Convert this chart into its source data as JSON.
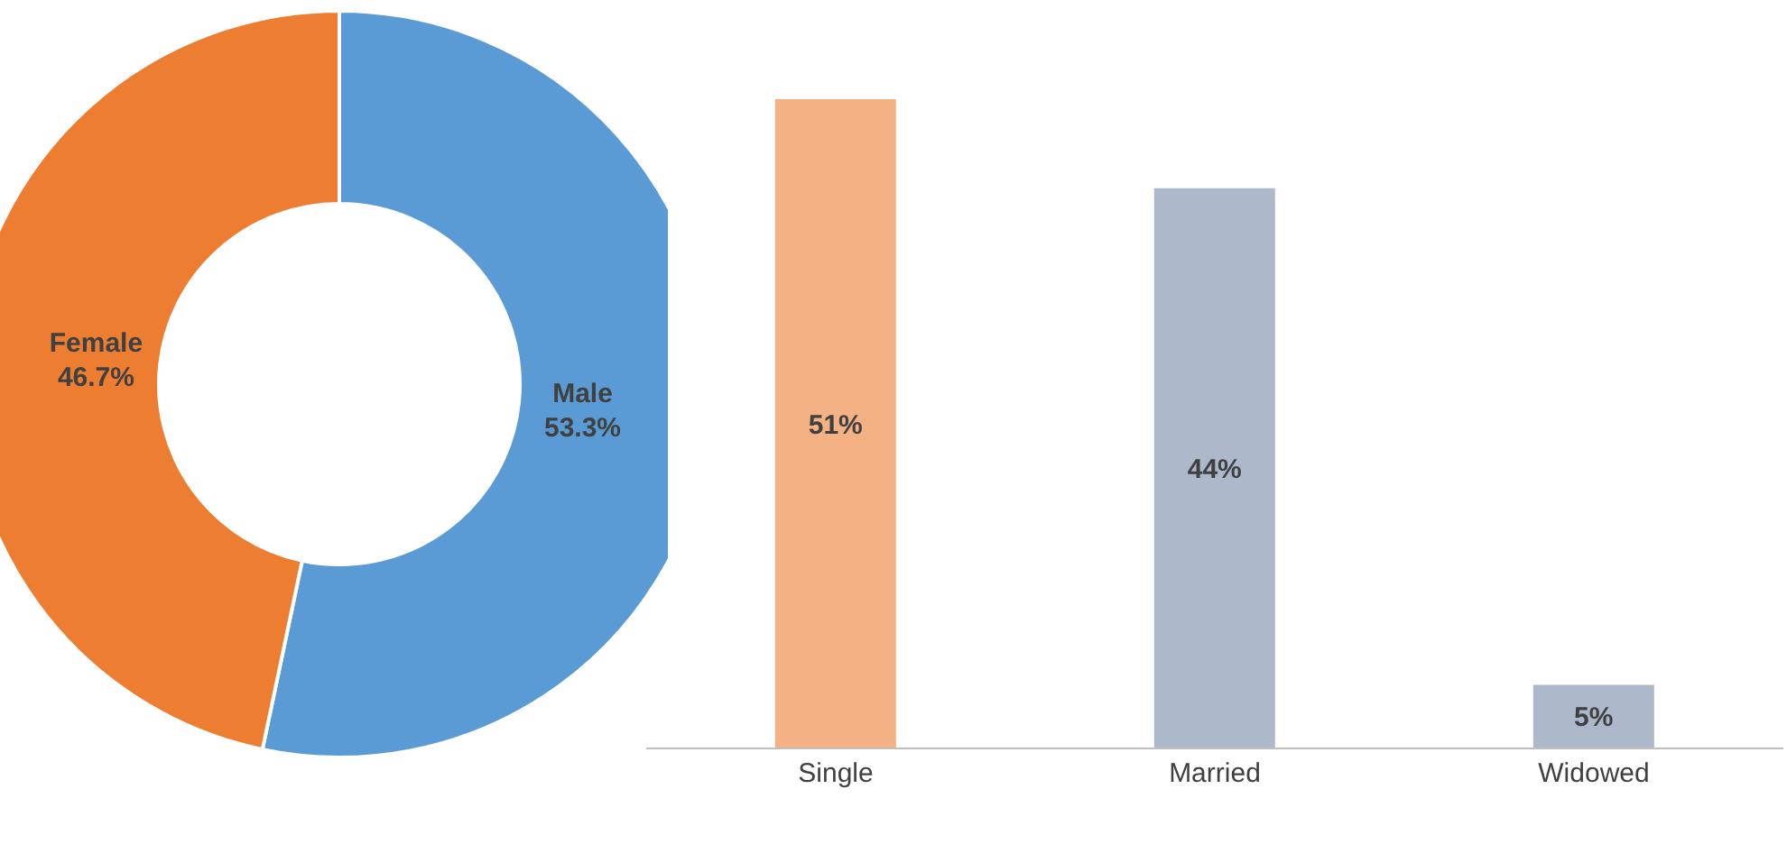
{
  "chart_data": [
    {
      "type": "donut",
      "categories": [
        "Male",
        "Female"
      ],
      "values": [
        53.3,
        46.7
      ],
      "colors": [
        "#5b9bd5",
        "#ed7d31"
      ],
      "value_labels": [
        "53.3%",
        "46.7%"
      ],
      "legend": false
    },
    {
      "type": "bar",
      "categories": [
        "Single",
        "Married",
        "Widowed"
      ],
      "values": [
        51,
        44,
        5
      ],
      "colors": [
        "#f4b183",
        "#adb9ca",
        "#adb9ca"
      ],
      "value_labels": [
        "51%",
        "44%",
        "5%"
      ],
      "legend": false,
      "grid": false
    }
  ]
}
